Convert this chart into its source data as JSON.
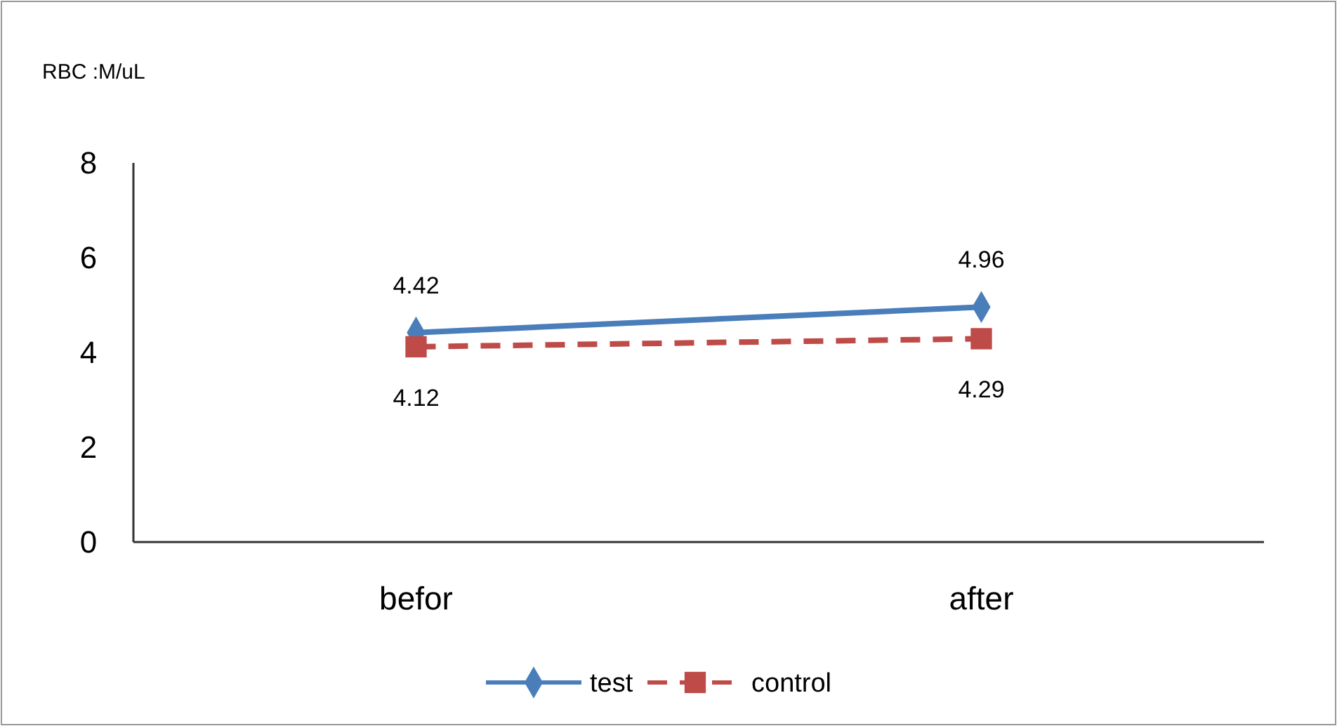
{
  "chart_data": {
    "type": "line",
    "ylabel": "RBC :M/uL",
    "categories": [
      "befor",
      "after"
    ],
    "series": [
      {
        "name": "test",
        "color": "#4a7ebb",
        "values": [
          4.42,
          4.96
        ],
        "marker": "diamond",
        "line_style": "solid"
      },
      {
        "name": "control",
        "color": "#be4b48",
        "values": [
          4.12,
          4.29
        ],
        "marker": "square",
        "line_style": "dashed"
      }
    ],
    "ylim": [
      0,
      8
    ],
    "yticks": [
      0,
      2,
      4,
      6,
      8
    ],
    "grid": false,
    "legend": "bottom",
    "data_labels": true
  }
}
